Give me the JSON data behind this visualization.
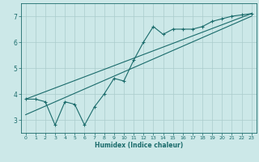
{
  "title": "",
  "xlabel": "Humidex (Indice chaleur)",
  "bg_color": "#cce8e8",
  "grid_color": "#aacccc",
  "line_color": "#1a6b6b",
  "xlim": [
    -0.5,
    23.5
  ],
  "ylim": [
    2.5,
    7.5
  ],
  "yticks": [
    3,
    4,
    5,
    6,
    7
  ],
  "xticks": [
    0,
    1,
    2,
    3,
    4,
    5,
    6,
    7,
    8,
    9,
    10,
    11,
    12,
    13,
    14,
    15,
    16,
    17,
    18,
    19,
    20,
    21,
    22,
    23
  ],
  "data_x": [
    0,
    1,
    2,
    3,
    4,
    5,
    6,
    7,
    8,
    9,
    10,
    11,
    12,
    13,
    14,
    15,
    16,
    17,
    18,
    19,
    20,
    21,
    22,
    23
  ],
  "data_y": [
    3.8,
    3.8,
    3.7,
    2.8,
    3.7,
    3.6,
    2.8,
    3.5,
    4.0,
    4.6,
    4.5,
    5.3,
    6.0,
    6.6,
    6.3,
    6.5,
    6.5,
    6.5,
    6.6,
    6.8,
    6.9,
    7.0,
    7.05,
    7.1
  ],
  "line1_x": [
    0,
    23
  ],
  "line1_y": [
    3.8,
    7.1
  ],
  "line2_x": [
    0,
    23
  ],
  "line2_y": [
    3.2,
    7.0
  ]
}
